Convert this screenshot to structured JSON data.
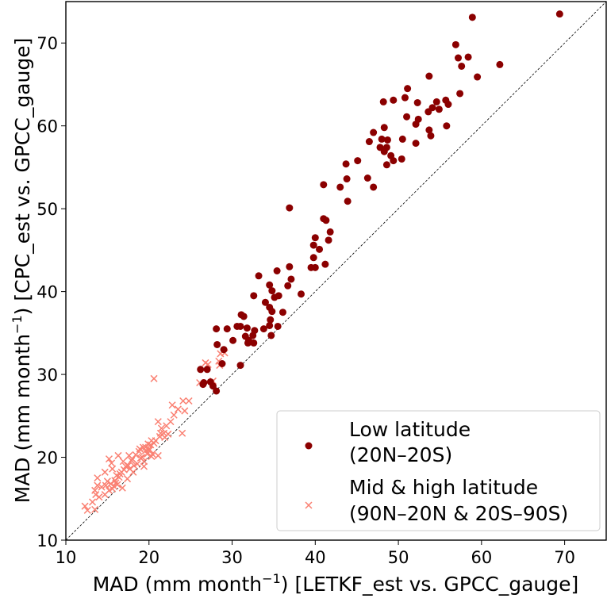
{
  "chart_data": {
    "type": "scatter",
    "title": "",
    "xlabel": {
      "pre": "MAD (mm month",
      "sup": "−1",
      "post": ") [LETKF_est vs. GPCC_gauge]"
    },
    "ylabel": {
      "pre": "MAD (mm month",
      "sup": "−1",
      "post": ") [CPC_est vs. GPCC_gauge]"
    },
    "xlim": [
      10,
      75
    ],
    "ylim": [
      10,
      75
    ],
    "xticks": [
      "10",
      "20",
      "30",
      "40",
      "50",
      "60",
      "70"
    ],
    "yticks": [
      "10",
      "20",
      "30",
      "40",
      "50",
      "60",
      "70"
    ],
    "reference_line": "y = x",
    "legend_position": "lower-right",
    "series": [
      {
        "name": "Low latitude",
        "name_line2": "(20N–20S)",
        "marker": "circle",
        "color": "#8b0000",
        "points": [
          [
            69.4,
            73.5
          ],
          [
            58.9,
            73.1
          ],
          [
            56.9,
            69.8
          ],
          [
            57.2,
            68.2
          ],
          [
            58.4,
            68.3
          ],
          [
            57.6,
            67.2
          ],
          [
            59.5,
            65.9
          ],
          [
            62.2,
            67.4
          ],
          [
            53.7,
            66.0
          ],
          [
            51.1,
            64.5
          ],
          [
            52.3,
            62.8
          ],
          [
            50.8,
            63.4
          ],
          [
            49.4,
            63.1
          ],
          [
            48.2,
            62.9
          ],
          [
            57.4,
            63.9
          ],
          [
            55.7,
            63.1
          ],
          [
            56.0,
            62.6
          ],
          [
            54.6,
            62.9
          ],
          [
            54.1,
            62.2
          ],
          [
            54.9,
            62.0
          ],
          [
            53.6,
            61.7
          ],
          [
            51.0,
            61.1
          ],
          [
            52.4,
            60.8
          ],
          [
            52.1,
            60.2
          ],
          [
            55.8,
            60.0
          ],
          [
            53.7,
            59.5
          ],
          [
            48.3,
            59.8
          ],
          [
            47.0,
            59.2
          ],
          [
            46.5,
            58.1
          ],
          [
            48.7,
            58.3
          ],
          [
            48.0,
            58.4
          ],
          [
            47.8,
            57.4
          ],
          [
            48.6,
            57.4
          ],
          [
            50.5,
            58.4
          ],
          [
            49.1,
            56.4
          ],
          [
            49.4,
            55.8
          ],
          [
            48.3,
            56.9
          ],
          [
            50.4,
            56.0
          ],
          [
            52.1,
            57.9
          ],
          [
            53.9,
            58.8
          ],
          [
            48.6,
            55.3
          ],
          [
            45.1,
            55.8
          ],
          [
            43.7,
            55.4
          ],
          [
            43.8,
            53.6
          ],
          [
            46.3,
            53.7
          ],
          [
            47.0,
            52.6
          ],
          [
            43.0,
            52.6
          ],
          [
            41.0,
            52.9
          ],
          [
            36.9,
            50.1
          ],
          [
            43.9,
            50.9
          ],
          [
            41.3,
            48.6
          ],
          [
            41.0,
            48.8
          ],
          [
            40.0,
            46.5
          ],
          [
            39.8,
            45.6
          ],
          [
            41.8,
            47.2
          ],
          [
            41.6,
            46.2
          ],
          [
            40.5,
            45.1
          ],
          [
            39.8,
            44.1
          ],
          [
            41.2,
            43.3
          ],
          [
            40.0,
            42.9
          ],
          [
            39.5,
            42.9
          ],
          [
            35.4,
            42.5
          ],
          [
            36.9,
            43.0
          ],
          [
            37.1,
            41.5
          ],
          [
            33.2,
            41.9
          ],
          [
            34.5,
            40.8
          ],
          [
            34.8,
            40.1
          ],
          [
            36.7,
            40.7
          ],
          [
            38.3,
            39.7
          ],
          [
            35.6,
            39.5
          ],
          [
            35.1,
            39.3
          ],
          [
            32.6,
            39.5
          ],
          [
            34.0,
            38.7
          ],
          [
            34.5,
            38.1
          ],
          [
            34.8,
            37.6
          ],
          [
            36.1,
            37.5
          ],
          [
            31.1,
            37.2
          ],
          [
            31.4,
            37.0
          ],
          [
            31.0,
            35.8
          ],
          [
            31.8,
            35.6
          ],
          [
            30.6,
            35.8
          ],
          [
            34.6,
            36.6
          ],
          [
            34.5,
            35.9
          ],
          [
            33.8,
            35.5
          ],
          [
            35.5,
            35.8
          ],
          [
            28.1,
            35.5
          ],
          [
            29.4,
            35.5
          ],
          [
            28.2,
            33.6
          ],
          [
            32.7,
            35.3
          ],
          [
            32.5,
            34.7
          ],
          [
            31.6,
            34.6
          ],
          [
            32.0,
            34.1
          ],
          [
            32.6,
            33.8
          ],
          [
            31.9,
            33.8
          ],
          [
            30.1,
            34.1
          ],
          [
            34.7,
            34.7
          ],
          [
            29.0,
            33.0
          ],
          [
            26.2,
            30.6
          ],
          [
            27.0,
            30.6
          ],
          [
            28.8,
            31.3
          ],
          [
            27.4,
            29.1
          ],
          [
            26.6,
            29.0
          ],
          [
            27.7,
            28.6
          ],
          [
            28.1,
            28.0
          ],
          [
            31.0,
            31.1
          ],
          [
            26.5,
            28.8
          ]
        ]
      },
      {
        "name": "Mid & high latitude",
        "name_line2": "(90N–20N & 20S–90S)",
        "marker": "x",
        "color": "#fa8072",
        "points": [
          [
            12.3,
            14.1
          ],
          [
            12.6,
            13.6
          ],
          [
            13.2,
            14.6
          ],
          [
            13.5,
            13.7
          ],
          [
            13.6,
            15.5
          ],
          [
            13.8,
            16.6
          ],
          [
            13.5,
            16.0
          ],
          [
            14.0,
            15.2
          ],
          [
            14.3,
            16.4
          ],
          [
            14.7,
            15.5
          ],
          [
            14.8,
            16.6
          ],
          [
            15.0,
            17.1
          ],
          [
            15.2,
            19.8
          ],
          [
            15.5,
            19.3
          ],
          [
            15.4,
            16.8
          ],
          [
            15.6,
            16.2
          ],
          [
            15.8,
            16.5
          ],
          [
            15.9,
            17.2
          ],
          [
            16.0,
            16.9
          ],
          [
            16.2,
            16.7
          ],
          [
            16.1,
            17.8
          ],
          [
            16.4,
            17.6
          ],
          [
            16.5,
            18.0
          ],
          [
            16.7,
            18.2
          ],
          [
            16.3,
            20.2
          ],
          [
            16.9,
            19.5
          ],
          [
            17.0,
            18.5
          ],
          [
            17.2,
            18.9
          ],
          [
            17.5,
            19.0
          ],
          [
            17.7,
            18.6
          ],
          [
            17.4,
            17.4
          ],
          [
            17.9,
            19.6
          ],
          [
            17.6,
            20.2
          ],
          [
            18.0,
            19.8
          ],
          [
            18.2,
            19.0
          ],
          [
            18.4,
            20.3
          ],
          [
            18.6,
            19.2
          ],
          [
            18.8,
            20.7
          ],
          [
            19.0,
            19.9
          ],
          [
            19.2,
            20.0
          ],
          [
            19.4,
            19.5
          ],
          [
            19.6,
            20.8
          ],
          [
            19.8,
            20.4
          ],
          [
            19.9,
            21.6
          ],
          [
            20.1,
            20.9
          ],
          [
            20.3,
            22.0
          ],
          [
            20.4,
            20.4
          ],
          [
            19.3,
            21.2
          ],
          [
            19.6,
            21.2
          ],
          [
            18.9,
            21.0
          ],
          [
            20.0,
            21.0
          ],
          [
            20.6,
            21.7
          ],
          [
            20.8,
            22.0
          ],
          [
            20.2,
            21.5
          ],
          [
            21.1,
            20.2
          ],
          [
            21.4,
            22.9
          ],
          [
            21.5,
            23.5
          ],
          [
            21.8,
            22.9
          ],
          [
            22.1,
            23.8
          ],
          [
            22.3,
            22.8
          ],
          [
            21.9,
            22.4
          ],
          [
            22.6,
            24.3
          ],
          [
            21.1,
            24.3
          ],
          [
            21.3,
            22.5
          ],
          [
            23.0,
            25.1
          ],
          [
            23.5,
            25.8
          ],
          [
            22.8,
            26.3
          ],
          [
            24.1,
            26.8
          ],
          [
            24.8,
            26.8
          ],
          [
            24.3,
            25.6
          ],
          [
            20.6,
            29.5
          ],
          [
            26.1,
            29.0
          ],
          [
            26.8,
            31.4
          ],
          [
            27.1,
            31.2
          ],
          [
            27.7,
            29.2
          ],
          [
            28.4,
            31.6
          ],
          [
            28.6,
            32.5
          ],
          [
            29.1,
            32.6
          ],
          [
            28.5,
            31.1
          ],
          [
            13.8,
            17.5
          ],
          [
            14.7,
            18.2
          ],
          [
            15.6,
            18.6
          ],
          [
            15.2,
            16.0
          ],
          [
            16.8,
            16.3
          ],
          [
            18.1,
            18.2
          ],
          [
            19.4,
            18.9
          ],
          [
            20.3,
            20.1
          ],
          [
            24.0,
            22.9
          ]
        ]
      }
    ]
  }
}
